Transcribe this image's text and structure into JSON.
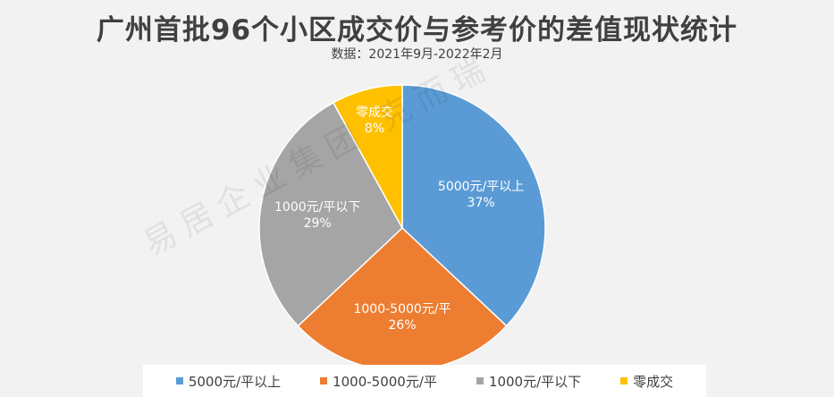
{
  "chart_data": {
    "type": "pie",
    "title": "广州首批96个小区成交价与参考价的差值现状统计",
    "subtitle": "数据：2021年9月-2022年2月",
    "slices": [
      {
        "label": "5000元/平以上",
        "value": 37,
        "display": "37%",
        "color": "#5b9bd5"
      },
      {
        "label": "1000-5000元/平",
        "value": 26,
        "display": "26%",
        "color": "#ed7d31"
      },
      {
        "label": "1000元/平以下",
        "value": 29,
        "display": "29%",
        "color": "#a5a5a5"
      },
      {
        "label": "零成交",
        "value": 8,
        "display": "8%",
        "color": "#ffc000"
      }
    ],
    "legend_position": "bottom"
  },
  "watermark": "易居企业集团·克而瑞"
}
